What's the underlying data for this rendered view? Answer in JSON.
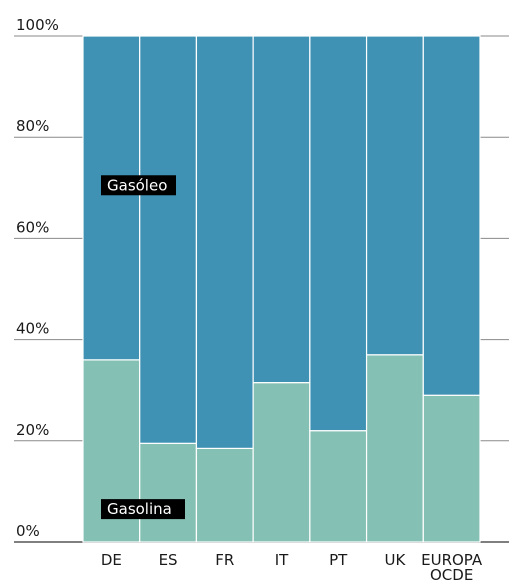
{
  "chart_data": {
    "type": "bar",
    "stacked": true,
    "categories": [
      [
        "DE"
      ],
      [
        "ES"
      ],
      [
        "FR"
      ],
      [
        "IT"
      ],
      [
        "PT"
      ],
      [
        "UK"
      ],
      [
        "EUROPA",
        "OCDE"
      ]
    ],
    "series": [
      {
        "name": "Gasolina",
        "color": "#85c0b4",
        "values": [
          36,
          19.5,
          18.5,
          31.5,
          22,
          37,
          29
        ]
      },
      {
        "name": "Gasóleo",
        "color": "#3f92b3",
        "values": [
          64,
          80.5,
          81.5,
          68.5,
          78,
          63,
          71
        ]
      }
    ],
    "ylim": [
      0,
      100
    ],
    "yticks": [
      "0%",
      "20%",
      "40%",
      "60%",
      "80%",
      "100%"
    ],
    "grid": true
  }
}
